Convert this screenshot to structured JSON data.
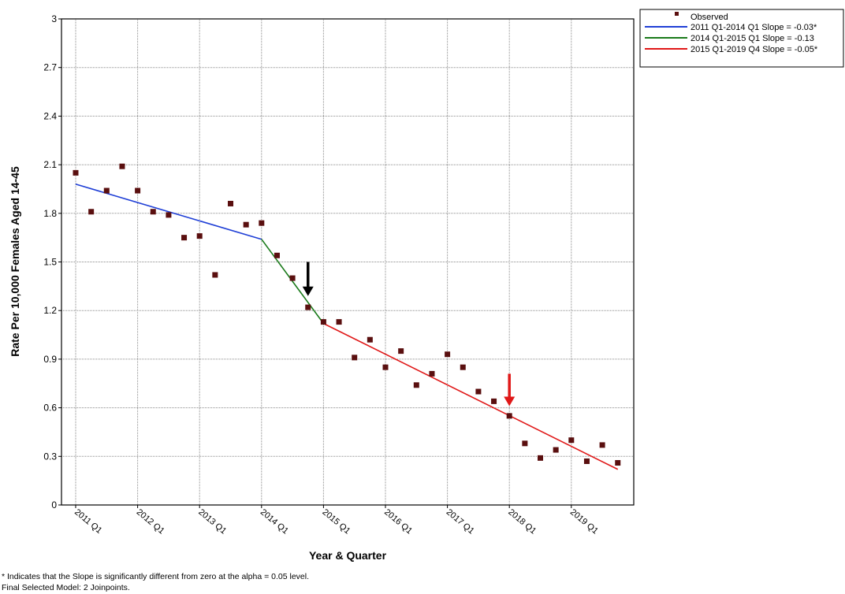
{
  "chart_data": {
    "type": "scatter",
    "title": "",
    "xlabel": "Year & Quarter",
    "ylabel": "Rate Per 10,000 Females Aged 14-45",
    "ylim": [
      0,
      3
    ],
    "yticks": [
      "0",
      "0.3",
      "0.6",
      "0.9",
      "1.2",
      "1.5",
      "1.8",
      "2.1",
      "2.4",
      "2.7",
      "3"
    ],
    "xlim": [
      0,
      35.5
    ],
    "xticks": [
      {
        "x": 0,
        "label": "2011 Q1"
      },
      {
        "x": 4,
        "label": "2012 Q1"
      },
      {
        "x": 8,
        "label": "2013 Q1"
      },
      {
        "x": 12,
        "label": "2014 Q1"
      },
      {
        "x": 16,
        "label": "2015 Q1"
      },
      {
        "x": 20,
        "label": "2016 Q1"
      },
      {
        "x": 24,
        "label": "2017 Q1"
      },
      {
        "x": 28,
        "label": "2018 Q1"
      },
      {
        "x": 32,
        "label": "2019 Q1"
      }
    ],
    "grid": true,
    "legend_position": "top-right, outside plot",
    "observed": {
      "name": "Observed",
      "color": "#5a0f0f",
      "x": [
        0,
        1,
        2,
        3,
        4,
        5,
        6,
        7,
        8,
        9,
        10,
        11,
        12,
        13,
        14,
        15,
        16,
        17,
        18,
        19,
        20,
        21,
        22,
        23,
        24,
        25,
        26,
        27,
        28,
        29,
        30,
        31,
        32,
        33,
        34,
        35
      ],
      "y": [
        2.05,
        1.81,
        1.94,
        2.09,
        1.94,
        1.81,
        1.79,
        1.65,
        1.66,
        1.42,
        1.86,
        1.73,
        1.74,
        1.54,
        1.4,
        1.22,
        1.13,
        1.13,
        0.91,
        1.02,
        0.85,
        0.95,
        0.74,
        0.81,
        0.93,
        0.85,
        0.7,
        0.64,
        0.55,
        0.38,
        0.29,
        0.34,
        0.4,
        0.27,
        0.37,
        0.26
      ]
    },
    "series": [
      {
        "name": "2011 Q1-2014 Q1 Slope  = -0.03*",
        "color": "#1f3fd6",
        "x": [
          0,
          12
        ],
        "y": [
          1.98,
          1.64
        ]
      },
      {
        "name": "2014 Q1-2015 Q1 Slope  = -0.13",
        "color": "#1a7a1a",
        "x": [
          12,
          16
        ],
        "y": [
          1.64,
          1.12
        ]
      },
      {
        "name": "2015 Q1-2019 Q4 Slope  = -0.05*",
        "color": "#e01818",
        "x": [
          16,
          35
        ],
        "y": [
          1.12,
          0.22
        ]
      }
    ],
    "annotations": [
      {
        "type": "arrow",
        "color": "#000000",
        "x": 15,
        "y_from": 1.5,
        "y_to": 1.29
      },
      {
        "type": "arrow",
        "color": "#e01818",
        "x": 28,
        "y_from": 0.81,
        "y_to": 0.61
      }
    ]
  },
  "footnotes": {
    "line1": "* Indicates that the Slope is significantly different from zero at the alpha = 0.05 level.",
    "line2": "Final Selected Model: 2 Joinpoints."
  }
}
